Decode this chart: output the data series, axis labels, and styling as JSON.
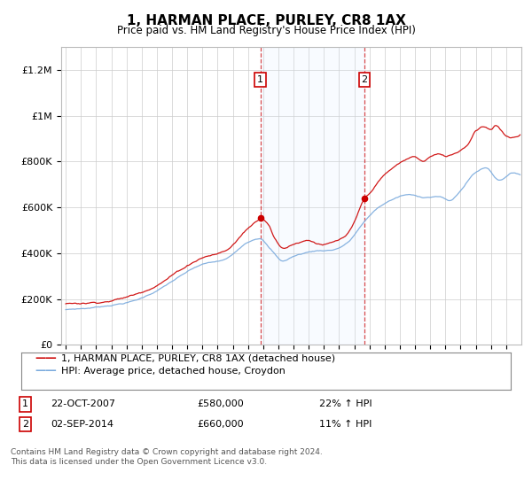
{
  "title": "1, HARMAN PLACE, PURLEY, CR8 1AX",
  "subtitle": "Price paid vs. HM Land Registry's House Price Index (HPI)",
  "ylim": [
    0,
    1300000
  ],
  "yticks": [
    0,
    200000,
    400000,
    600000,
    800000,
    1000000,
    1200000
  ],
  "ytick_labels": [
    "£0",
    "£200K",
    "£400K",
    "£600K",
    "£800K",
    "£1M",
    "£1.2M"
  ],
  "background_color": "#ffffff",
  "grid_color": "#cccccc",
  "sale1": {
    "date_num": 2007.81,
    "price": 580000,
    "label": "1",
    "date_str": "22-OCT-2007",
    "pct": "22%",
    "direction": "↑"
  },
  "sale2": {
    "date_num": 2014.67,
    "price": 660000,
    "label": "2",
    "date_str": "02-SEP-2014",
    "pct": "11%",
    "direction": "↑"
  },
  "legend_entry1": "1, HARMAN PLACE, PURLEY, CR8 1AX (detached house)",
  "legend_entry2": "HPI: Average price, detached house, Croydon",
  "footer1": "Contains HM Land Registry data © Crown copyright and database right 2024.",
  "footer2": "This data is licensed under the Open Government Licence v3.0.",
  "sold_color": "#cc0000",
  "hpi_color": "#7aaadd",
  "shade_color": "#ddeeff",
  "xmin": 1994.7,
  "xmax": 2025.0
}
